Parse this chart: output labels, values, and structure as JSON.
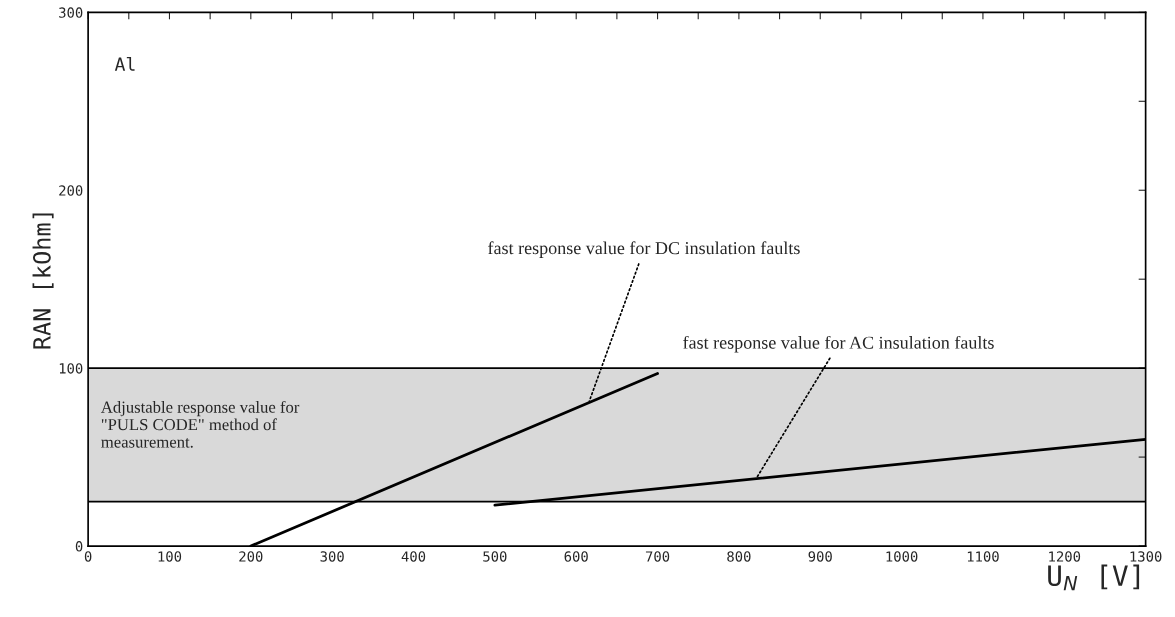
{
  "chart_data": {
    "type": "line",
    "xlabel": "U$_{N}$ [V]",
    "ylabel": "RAN [kOhm]",
    "series": [
      {
        "x": [
          0,
          1300
        ],
        "values": [
          100,
          100
        ],
        "color": "#000000"
      },
      {
        "x": [
          0,
          1300
        ],
        "values": [
          25,
          25
        ],
        "color": "#000000"
      },
      {
        "x": [
          200,
          700
        ],
        "values": [
          0,
          97
        ],
        "color": "#000000"
      },
      {
        "x": [
          500,
          1300
        ],
        "values": [
          23,
          60
        ],
        "color": "#000000"
      }
    ],
    "bands": [
      {
        "axis": "y",
        "from": 25,
        "to": 100,
        "color": "#d9d9d9"
      }
    ],
    "annotations": [
      "Al",
      "Adjustable response value for\n\"PULS CODE\" method of\nmeasurement.",
      {
        "text": "fast response value for DC insulation faults",
        "x": 615,
        "y": 80
      },
      {
        "text": "fast response value for AC insulation faults",
        "x": 820,
        "y": 37
      }
    ],
    "xlim": [
      0,
      1300
    ],
    "ylim": [
      0,
      300
    ],
    "xticks": [
      0,
      {
        "value": 50,
        "label": null
      },
      100,
      {
        "value": 150,
        "label": null
      },
      200,
      {
        "value": 250,
        "label": null
      },
      300,
      {
        "value": 350,
        "label": null
      },
      400,
      {
        "value": 450,
        "label": null
      },
      500,
      {
        "value": 550,
        "label": null
      },
      600,
      {
        "value": 650,
        "label": null
      },
      700,
      {
        "value": 750,
        "label": null
      },
      800,
      {
        "value": 850,
        "label": null
      },
      900,
      {
        "value": 950,
        "label": null
      },
      1000,
      {
        "value": 1050,
        "label": null
      },
      1100,
      {
        "value": 1150,
        "label": null
      },
      1200,
      {
        "value": 1250,
        "label": null
      },
      1300
    ],
    "yticks": [
      0,
      {
        "value": 50,
        "label": null
      },
      100,
      {
        "value": 150,
        "label": null
      },
      200,
      {
        "value": 250,
        "label": null
      },
      300
    ],
    "grid": false,
    "legend": false,
    "marker": "none",
    "line_style": "solid"
  }
}
